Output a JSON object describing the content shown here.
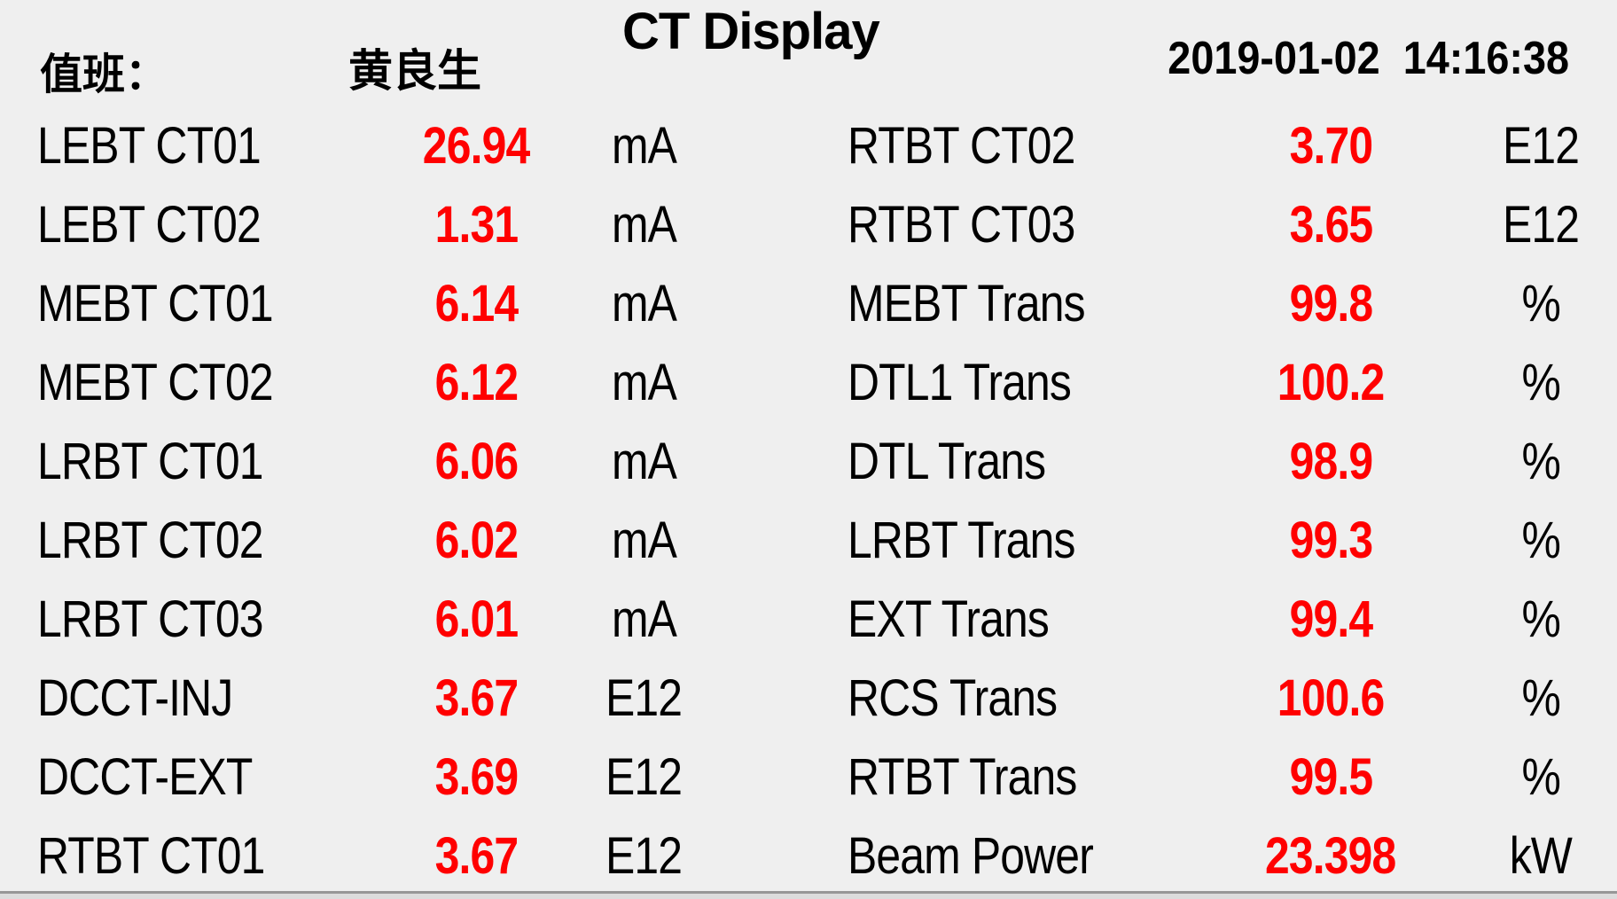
{
  "header": {
    "title": "CT Display",
    "duty_label": "值班：",
    "duty_name": "黄良生",
    "timestamp": "2019-01-02  14:16:38"
  },
  "colors": {
    "background": "#efefef",
    "label_text": "#000000",
    "value_text": "#ff0000",
    "bottom_edge": "#979797"
  },
  "readings": {
    "left": [
      {
        "label": "LEBT CT01",
        "value": "26.94",
        "unit": "mA"
      },
      {
        "label": "LEBT CT02",
        "value": "1.31",
        "unit": "mA"
      },
      {
        "label": "MEBT CT01",
        "value": "6.14",
        "unit": "mA"
      },
      {
        "label": "MEBT CT02",
        "value": "6.12",
        "unit": "mA"
      },
      {
        "label": "LRBT CT01",
        "value": "6.06",
        "unit": "mA"
      },
      {
        "label": "LRBT CT02",
        "value": "6.02",
        "unit": "mA"
      },
      {
        "label": "LRBT CT03",
        "value": "6.01",
        "unit": "mA"
      },
      {
        "label": "DCCT-INJ",
        "value": "3.67",
        "unit": "E12"
      },
      {
        "label": "DCCT-EXT",
        "value": "3.69",
        "unit": "E12"
      },
      {
        "label": "RTBT CT01",
        "value": "3.67",
        "unit": "E12"
      }
    ],
    "right": [
      {
        "label": "RTBT CT02",
        "value": "3.70",
        "unit": "E12"
      },
      {
        "label": "RTBT CT03",
        "value": "3.65",
        "unit": "E12"
      },
      {
        "label": "MEBT Trans",
        "value": "99.8",
        "unit": "%"
      },
      {
        "label": "DTL1 Trans",
        "value": "100.2",
        "unit": "%"
      },
      {
        "label": "DTL Trans",
        "value": "98.9",
        "unit": "%"
      },
      {
        "label": "LRBT Trans",
        "value": "99.3",
        "unit": "%"
      },
      {
        "label": "EXT Trans",
        "value": "99.4",
        "unit": "%"
      },
      {
        "label": "RCS Trans",
        "value": "100.6",
        "unit": "%"
      },
      {
        "label": "RTBT Trans",
        "value": "99.5",
        "unit": "%"
      },
      {
        "label": "Beam Power",
        "value": "23.398",
        "unit": "kW"
      }
    ]
  }
}
